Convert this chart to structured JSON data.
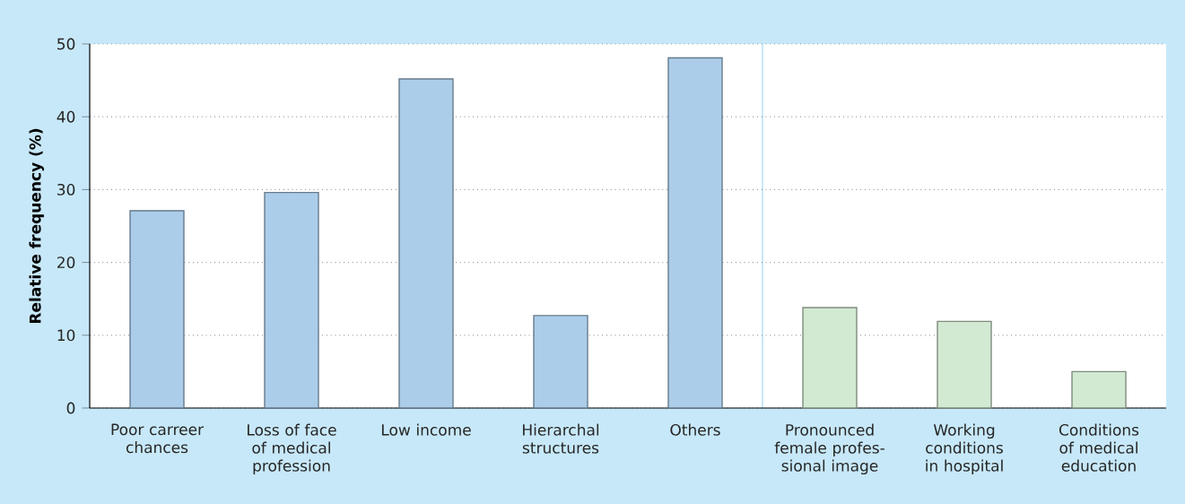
{
  "chart_data": {
    "type": "bar",
    "categories": [
      "Poor carreer chances",
      "Loss of face of medical profession",
      "Low income",
      "Hierarchal structures",
      "Others",
      "Pronounced female profes-sional image",
      "Working conditions in hospital",
      "Conditions of medical education"
    ],
    "values": [
      27.1,
      29.6,
      45.2,
      12.7,
      48.1,
      13.8,
      11.9,
      5.0
    ],
    "colors": [
      "#abcdea",
      "#abcdea",
      "#abcdea",
      "#abcdea",
      "#abcdea",
      "#d2e9d2",
      "#d2e9d2",
      "#d2e9d2"
    ],
    "ylabel": "Relative frequency (%)",
    "ylim": [
      0,
      50
    ],
    "yticks": [
      0,
      10,
      20,
      30,
      40,
      50
    ],
    "grid": "y"
  }
}
